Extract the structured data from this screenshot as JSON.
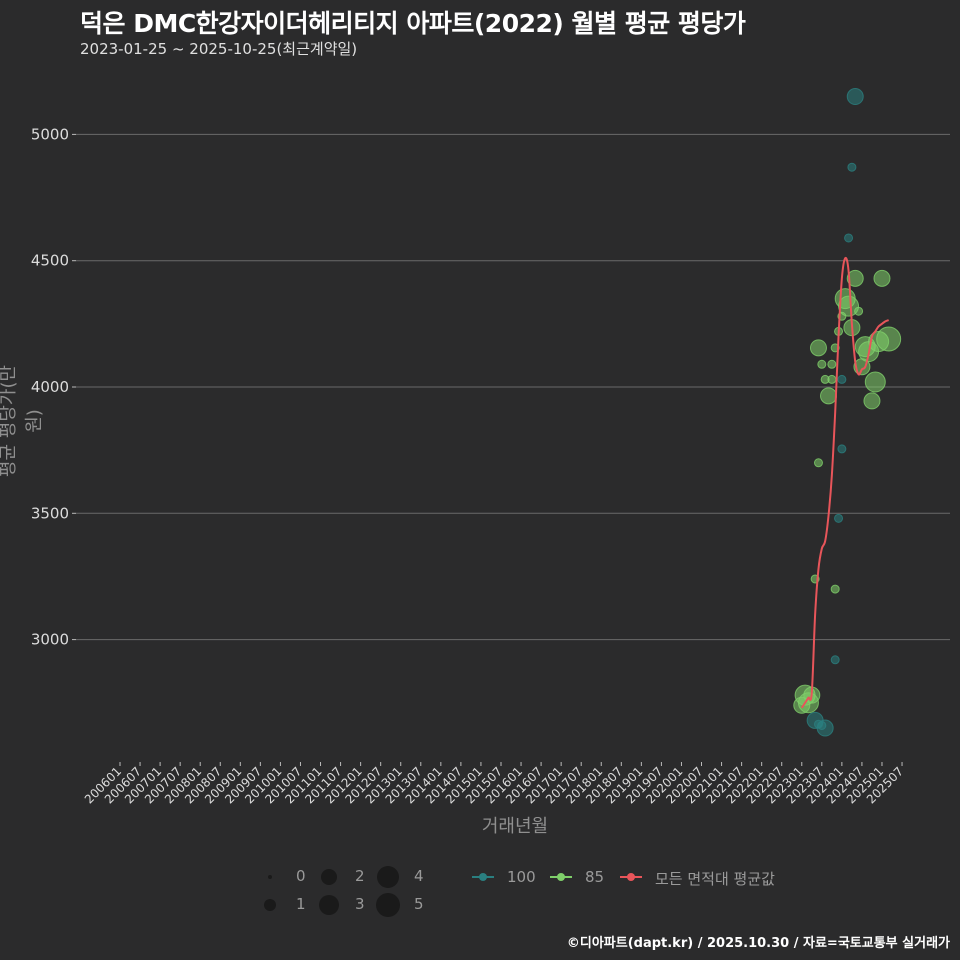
{
  "header": {
    "title": "덕은 DMC한강자이더헤리티지 아파트(2022) 월별 평균 평당가",
    "subtitle": "2023-01-25 ~ 2025-10-25(최근계약일)"
  },
  "footer": {
    "credit": "©디아파트(dapt.kr) / 2025.10.30 / 자료=국토교통부 실거래가"
  },
  "colors": {
    "background": "#2b2b2c",
    "grid": "#6a6a6a",
    "series_100": "#2a7f80",
    "series_85": "#7fcf6a",
    "avg_line": "#e8555a"
  },
  "legend": {
    "size": {
      "labels": [
        "0",
        "1",
        "2",
        "3",
        "4",
        "5"
      ]
    },
    "series": [
      {
        "label": "100",
        "color": "#2a7f80"
      },
      {
        "label": "85",
        "color": "#7fcf6a"
      },
      {
        "label": "모든 면적대 평균값",
        "color": "#e8555a"
      }
    ]
  },
  "chart_data": {
    "type": "scatter",
    "title": "덕은 DMC한강자이더헤리티지 아파트(2022) 월별 평균 평당가",
    "subtitle": "2023-01-25 ~ 2025-10-25(최근계약일)",
    "xlabel": "거래년월",
    "ylabel": "평균 평당가(만 원)",
    "yticks": [
      3000,
      3500,
      4000,
      4500,
      5000
    ],
    "ylim": [
      2520,
      5200
    ],
    "xticks": [
      "200601",
      "200607",
      "200701",
      "200707",
      "200801",
      "200807",
      "200901",
      "200907",
      "201001",
      "201007",
      "201101",
      "201107",
      "201201",
      "201207",
      "201301",
      "201307",
      "201401",
      "201407",
      "201501",
      "201507",
      "201601",
      "201607",
      "201701",
      "201707",
      "201801",
      "201807",
      "201901",
      "201907",
      "202001",
      "202007",
      "202101",
      "202107",
      "202201",
      "202207",
      "202301",
      "202307",
      "202401",
      "202407",
      "202501",
      "202507"
    ],
    "grid": true,
    "legend_position": "bottom",
    "series": [
      {
        "name": "100",
        "color": "#2a7f80",
        "points": [
          {
            "x": "202305",
            "y": 2680,
            "size": 3
          },
          {
            "x": "202306",
            "y": 2665,
            "size": 1
          },
          {
            "x": "202307",
            "y": 2660,
            "size": 1
          },
          {
            "x": "202308",
            "y": 2650,
            "size": 3
          },
          {
            "x": "202311",
            "y": 2920,
            "size": 1
          },
          {
            "x": "202312",
            "y": 3480,
            "size": 1
          },
          {
            "x": "202401",
            "y": 3755,
            "size": 1
          },
          {
            "x": "202401",
            "y": 4030,
            "size": 1
          },
          {
            "x": "202404",
            "y": 4870,
            "size": 1
          },
          {
            "x": "202405",
            "y": 5150,
            "size": 3
          },
          {
            "x": "202403",
            "y": 4590,
            "size": 1
          }
        ]
      },
      {
        "name": "85",
        "color": "#7fcf6a",
        "points": [
          {
            "x": "202301",
            "y": 2740,
            "size": 3
          },
          {
            "x": "202302",
            "y": 2780,
            "size": 4
          },
          {
            "x": "202303",
            "y": 2750,
            "size": 4
          },
          {
            "x": "202304",
            "y": 2780,
            "size": 3
          },
          {
            "x": "202305",
            "y": 3240,
            "size": 1
          },
          {
            "x": "202306",
            "y": 3700,
            "size": 1
          },
          {
            "x": "202306",
            "y": 4155,
            "size": 3
          },
          {
            "x": "202307",
            "y": 4090,
            "size": 1
          },
          {
            "x": "202308",
            "y": 4030,
            "size": 1
          },
          {
            "x": "202309",
            "y": 3965,
            "size": 3
          },
          {
            "x": "202310",
            "y": 4030,
            "size": 1
          },
          {
            "x": "202310",
            "y": 4090,
            "size": 1
          },
          {
            "x": "202311",
            "y": 4155,
            "size": 1
          },
          {
            "x": "202312",
            "y": 4220,
            "size": 1
          },
          {
            "x": "202311",
            "y": 3200,
            "size": 1
          },
          {
            "x": "202401",
            "y": 4280,
            "size": 1
          },
          {
            "x": "202402",
            "y": 4350,
            "size": 4
          },
          {
            "x": "202403",
            "y": 4320,
            "size": 4
          },
          {
            "x": "202404",
            "y": 4235,
            "size": 3
          },
          {
            "x": "202405",
            "y": 4430,
            "size": 3
          },
          {
            "x": "202406",
            "y": 4300,
            "size": 1
          },
          {
            "x": "202407",
            "y": 4080,
            "size": 3
          },
          {
            "x": "202408",
            "y": 4160,
            "size": 4
          },
          {
            "x": "202409",
            "y": 4140,
            "size": 4
          },
          {
            "x": "202410",
            "y": 3945,
            "size": 3
          },
          {
            "x": "202411",
            "y": 4020,
            "size": 4
          },
          {
            "x": "202412",
            "y": 4180,
            "size": 4
          },
          {
            "x": "202503",
            "y": 4190,
            "size": 5
          },
          {
            "x": "202501",
            "y": 4430,
            "size": 3
          }
        ]
      },
      {
        "name": "모든 면적대 평균값",
        "color": "#e8555a",
        "type": "line",
        "x": [
          "202301",
          "202302",
          "202303",
          "202304",
          "202305",
          "202306",
          "202307",
          "202308",
          "202309",
          "202310",
          "202311",
          "202312",
          "202401",
          "202402",
          "202403",
          "202404",
          "202405",
          "202406",
          "202407",
          "202408",
          "202409",
          "202410",
          "202411",
          "202412",
          "202501",
          "202502",
          "202503"
        ],
        "values": [
          2730,
          2750,
          2770,
          2790,
          3100,
          3280,
          3360,
          3390,
          3490,
          3650,
          3900,
          4200,
          4430,
          4510,
          4460,
          4250,
          4100,
          4050,
          4070,
          4080,
          4130,
          4200,
          4220,
          4240,
          4250,
          4260,
          4265
        ]
      }
    ]
  }
}
